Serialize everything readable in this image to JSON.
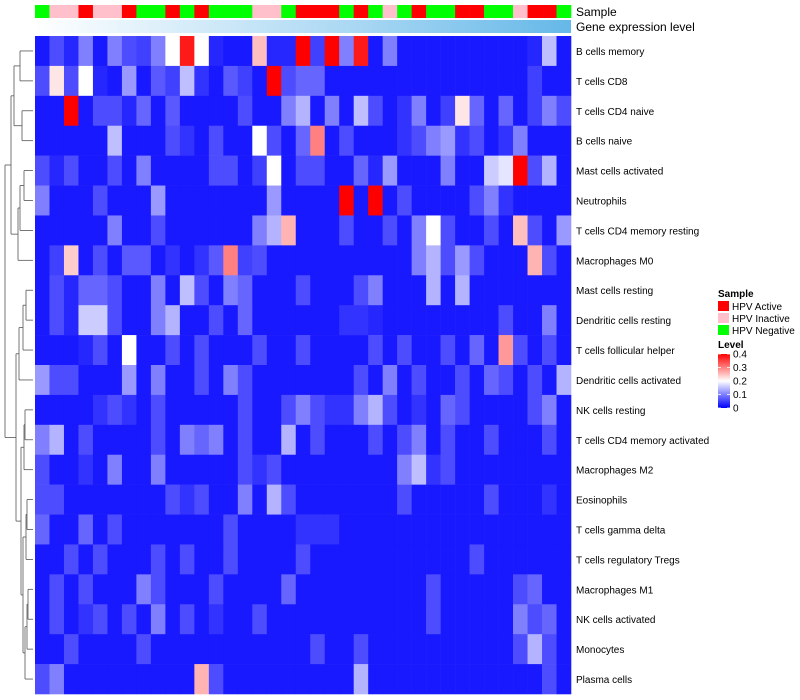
{
  "chart_data": {
    "type": "heatmap",
    "annotation_labels": [
      "Sample",
      "Gene expression level"
    ],
    "rows": [
      "B cells memory",
      "T cells CD8",
      "T cells CD4 naive",
      "B cells naive",
      "Mast cells activated",
      "Neutrophils",
      "T cells CD4 memory resting",
      "Macrophages M0",
      "Mast cells resting",
      "Dendritic cells resting",
      "T cells follicular helper",
      "Dendritic cells activated",
      "NK cells resting",
      "T cells CD4 memory activated",
      "Macrophages M2",
      "Eosinophils",
      "T cells gamma delta",
      "T cells regulatory  Tregs",
      "Macrophages M1",
      "NK cells activated",
      "Monocytes",
      "Plasma cells"
    ],
    "sample_groups": [
      "HPV Negative",
      "HPV Inactive",
      "HPV Inactive",
      "HPV Active",
      "HPV Inactive",
      "HPV Inactive",
      "HPV Active",
      "HPV Negative",
      "HPV Negative",
      "HPV Active",
      "HPV Negative",
      "HPV Active",
      "HPV Negative",
      "HPV Negative",
      "HPV Negative",
      "HPV Inactive",
      "HPV Inactive",
      "HPV Negative",
      "HPV Active",
      "HPV Active",
      "HPV Active",
      "HPV Negative",
      "HPV Active",
      "HPV Negative",
      "HPV Inactive",
      "HPV Negative",
      "HPV Active",
      "HPV Negative",
      "HPV Negative",
      "HPV Active",
      "HPV Active",
      "HPV Negative",
      "HPV Negative",
      "HPV Inactive",
      "HPV Active",
      "HPV Active",
      "HPV Negative"
    ],
    "values": [
      [
        0.02,
        0.06,
        0.03,
        0.1,
        0.02,
        0.1,
        0.06,
        0.05,
        0.1,
        0.2,
        0.38,
        0.2,
        0.03,
        0.02,
        0.02,
        0.25,
        0.03,
        0.03,
        0.4,
        0.05,
        0.4,
        0.1,
        0.38,
        0.02,
        0.1,
        0.02,
        0.02,
        0.02,
        0.02,
        0.02,
        0.02,
        0.02,
        0.02,
        0.02,
        0.03,
        0.15,
        0.02
      ],
      [
        0.06,
        0.22,
        0.06,
        0.2,
        0.03,
        0.02,
        0.12,
        0.02,
        0.07,
        0.05,
        0.15,
        0.04,
        0.02,
        0.07,
        0.05,
        0.02,
        0.4,
        0.06,
        0.08,
        0.08,
        0.02,
        0.02,
        0.02,
        0.02,
        0.02,
        0.02,
        0.02,
        0.02,
        0.02,
        0.02,
        0.02,
        0.02,
        0.02,
        0.02,
        0.05,
        0.02,
        0.02
      ],
      [
        0.02,
        0.02,
        0.4,
        0.02,
        0.06,
        0.06,
        0.03,
        0.08,
        0.02,
        0.07,
        0.02,
        0.02,
        0.02,
        0.02,
        0.06,
        0.02,
        0.02,
        0.1,
        0.14,
        0.02,
        0.1,
        0.02,
        0.15,
        0.06,
        0.02,
        0.04,
        0.1,
        0.02,
        0.05,
        0.22,
        0.08,
        0.02,
        0.08,
        0.02,
        0.05,
        0.1,
        0.06
      ],
      [
        0.02,
        0.02,
        0.02,
        0.02,
        0.02,
        0.15,
        0.02,
        0.02,
        0.02,
        0.06,
        0.04,
        0.02,
        0.06,
        0.02,
        0.02,
        0.2,
        0.06,
        0.02,
        0.08,
        0.3,
        0.02,
        0.06,
        0.02,
        0.02,
        0.02,
        0.04,
        0.06,
        0.1,
        0.12,
        0.04,
        0.06,
        0.02,
        0.04,
        0.1,
        0.02,
        0.02,
        0.02
      ],
      [
        0.06,
        0.03,
        0.06,
        0.02,
        0.02,
        0.06,
        0.02,
        0.1,
        0.02,
        0.02,
        0.02,
        0.02,
        0.06,
        0.06,
        0.02,
        0.05,
        0.2,
        0.02,
        0.06,
        0.06,
        0.02,
        0.02,
        0.08,
        0.03,
        0.12,
        0.02,
        0.02,
        0.02,
        0.1,
        0.02,
        0.02,
        0.16,
        0.18,
        0.4,
        0.06,
        0.14,
        0.02
      ],
      [
        0.1,
        0.02,
        0.02,
        0.02,
        0.06,
        0.02,
        0.02,
        0.02,
        0.12,
        0.02,
        0.02,
        0.02,
        0.02,
        0.02,
        0.02,
        0.02,
        0.12,
        0.02,
        0.02,
        0.02,
        0.02,
        0.4,
        0.02,
        0.4,
        0.02,
        0.06,
        0.02,
        0.02,
        0.02,
        0.02,
        0.06,
        0.1,
        0.04,
        0.02,
        0.02,
        0.02,
        0.02
      ],
      [
        0.02,
        0.02,
        0.02,
        0.02,
        0.02,
        0.1,
        0.02,
        0.02,
        0.06,
        0.02,
        0.02,
        0.02,
        0.02,
        0.02,
        0.02,
        0.1,
        0.14,
        0.26,
        0.02,
        0.02,
        0.02,
        0.06,
        0.02,
        0.02,
        0.06,
        0.02,
        0.1,
        0.2,
        0.06,
        0.02,
        0.02,
        0.06,
        0.02,
        0.25,
        0.06,
        0.02,
        0.12
      ],
      [
        0.02,
        0.05,
        0.24,
        0.02,
        0.06,
        0.02,
        0.07,
        0.07,
        0.02,
        0.04,
        0.02,
        0.04,
        0.07,
        0.3,
        0.05,
        0.06,
        0.02,
        0.02,
        0.02,
        0.02,
        0.02,
        0.02,
        0.02,
        0.02,
        0.02,
        0.02,
        0.1,
        0.14,
        0.06,
        0.12,
        0.06,
        0.02,
        0.02,
        0.02,
        0.26,
        0.06,
        0.02
      ],
      [
        0.02,
        0.06,
        0.03,
        0.08,
        0.08,
        0.06,
        0.02,
        0.02,
        0.1,
        0.02,
        0.15,
        0.06,
        0.02,
        0.1,
        0.08,
        0.02,
        0.02,
        0.02,
        0.06,
        0.02,
        0.02,
        0.02,
        0.06,
        0.1,
        0.02,
        0.02,
        0.02,
        0.14,
        0.02,
        0.14,
        0.02,
        0.02,
        0.02,
        0.02,
        0.02,
        0.02,
        0.02
      ],
      [
        0.02,
        0.06,
        0.03,
        0.16,
        0.16,
        0.06,
        0.02,
        0.02,
        0.1,
        0.14,
        0.02,
        0.02,
        0.06,
        0.02,
        0.08,
        0.02,
        0.02,
        0.02,
        0.02,
        0.02,
        0.02,
        0.04,
        0.04,
        0.03,
        0.02,
        0.02,
        0.02,
        0.02,
        0.02,
        0.02,
        0.02,
        0.02,
        0.06,
        0.02,
        0.02,
        0.1,
        0.02
      ],
      [
        0.02,
        0.02,
        0.02,
        0.03,
        0.06,
        0.02,
        0.2,
        0.02,
        0.02,
        0.06,
        0.02,
        0.06,
        0.02,
        0.02,
        0.02,
        0.06,
        0.02,
        0.02,
        0.06,
        0.02,
        0.02,
        0.02,
        0.02,
        0.06,
        0.02,
        0.06,
        0.02,
        0.02,
        0.06,
        0.02,
        0.08,
        0.02,
        0.28,
        0.06,
        0.02,
        0.06,
        0.02
      ],
      [
        0.12,
        0.06,
        0.06,
        0.02,
        0.02,
        0.02,
        0.12,
        0.02,
        0.1,
        0.02,
        0.02,
        0.06,
        0.02,
        0.1,
        0.06,
        0.02,
        0.02,
        0.02,
        0.02,
        0.02,
        0.02,
        0.02,
        0.06,
        0.02,
        0.1,
        0.02,
        0.06,
        0.02,
        0.02,
        0.06,
        0.02,
        0.08,
        0.06,
        0.02,
        0.06,
        0.02,
        0.14
      ],
      [
        0.02,
        0.02,
        0.02,
        0.02,
        0.04,
        0.06,
        0.04,
        0.02,
        0.06,
        0.02,
        0.02,
        0.02,
        0.02,
        0.02,
        0.06,
        0.02,
        0.02,
        0.06,
        0.1,
        0.06,
        0.04,
        0.04,
        0.1,
        0.14,
        0.06,
        0.02,
        0.04,
        0.02,
        0.08,
        0.06,
        0.02,
        0.02,
        0.02,
        0.02,
        0.06,
        0.1,
        0.02
      ],
      [
        0.1,
        0.14,
        0.02,
        0.06,
        0.02,
        0.02,
        0.02,
        0.02,
        0.06,
        0.02,
        0.1,
        0.08,
        0.1,
        0.02,
        0.06,
        0.02,
        0.02,
        0.14,
        0.02,
        0.06,
        0.02,
        0.02,
        0.02,
        0.06,
        0.02,
        0.06,
        0.1,
        0.02,
        0.06,
        0.02,
        0.02,
        0.06,
        0.02,
        0.02,
        0.02,
        0.06,
        0.02
      ],
      [
        0.06,
        0.02,
        0.02,
        0.04,
        0.02,
        0.1,
        0.02,
        0.02,
        0.1,
        0.02,
        0.02,
        0.02,
        0.02,
        0.02,
        0.06,
        0.04,
        0.06,
        0.02,
        0.02,
        0.02,
        0.02,
        0.02,
        0.02,
        0.02,
        0.02,
        0.1,
        0.15,
        0.04,
        0.06,
        0.02,
        0.02,
        0.02,
        0.02,
        0.02,
        0.02,
        0.02,
        0.02
      ],
      [
        0.06,
        0.06,
        0.02,
        0.02,
        0.02,
        0.02,
        0.02,
        0.02,
        0.02,
        0.06,
        0.04,
        0.06,
        0.02,
        0.02,
        0.1,
        0.02,
        0.14,
        0.06,
        0.02,
        0.02,
        0.02,
        0.02,
        0.02,
        0.02,
        0.02,
        0.06,
        0.02,
        0.02,
        0.02,
        0.02,
        0.02,
        0.06,
        0.02,
        0.02,
        0.02,
        0.04,
        0.02
      ],
      [
        0.08,
        0.02,
        0.02,
        0.08,
        0.02,
        0.06,
        0.02,
        0.02,
        0.02,
        0.02,
        0.02,
        0.02,
        0.02,
        0.06,
        0.02,
        0.02,
        0.02,
        0.02,
        0.04,
        0.04,
        0.04,
        0.02,
        0.02,
        0.02,
        0.02,
        0.02,
        0.02,
        0.02,
        0.02,
        0.02,
        0.02,
        0.02,
        0.02,
        0.02,
        0.02,
        0.02,
        0.02
      ],
      [
        0.02,
        0.02,
        0.06,
        0.02,
        0.06,
        0.02,
        0.02,
        0.02,
        0.06,
        0.02,
        0.06,
        0.02,
        0.02,
        0.06,
        0.02,
        0.02,
        0.02,
        0.02,
        0.06,
        0.02,
        0.02,
        0.02,
        0.02,
        0.02,
        0.02,
        0.02,
        0.02,
        0.02,
        0.02,
        0.02,
        0.06,
        0.02,
        0.02,
        0.02,
        0.02,
        0.02,
        0.02
      ],
      [
        0.02,
        0.06,
        0.02,
        0.06,
        0.02,
        0.02,
        0.02,
        0.1,
        0.06,
        0.02,
        0.02,
        0.02,
        0.06,
        0.02,
        0.02,
        0.02,
        0.02,
        0.08,
        0.02,
        0.02,
        0.02,
        0.02,
        0.02,
        0.02,
        0.02,
        0.02,
        0.02,
        0.06,
        0.02,
        0.02,
        0.02,
        0.02,
        0.02,
        0.06,
        0.08,
        0.02,
        0.02
      ],
      [
        0.02,
        0.06,
        0.02,
        0.04,
        0.06,
        0.02,
        0.06,
        0.02,
        0.1,
        0.02,
        0.06,
        0.02,
        0.04,
        0.02,
        0.02,
        0.06,
        0.02,
        0.02,
        0.02,
        0.02,
        0.02,
        0.02,
        0.02,
        0.02,
        0.02,
        0.02,
        0.02,
        0.06,
        0.02,
        0.02,
        0.02,
        0.02,
        0.02,
        0.1,
        0.06,
        0.08,
        0.02
      ],
      [
        0.02,
        0.02,
        0.06,
        0.02,
        0.02,
        0.02,
        0.02,
        0.06,
        0.02,
        0.02,
        0.02,
        0.02,
        0.02,
        0.02,
        0.02,
        0.02,
        0.02,
        0.02,
        0.02,
        0.06,
        0.02,
        0.02,
        0.06,
        0.02,
        0.02,
        0.02,
        0.02,
        0.02,
        0.02,
        0.02,
        0.02,
        0.02,
        0.02,
        0.06,
        0.14,
        0.06,
        0.02
      ],
      [
        0.06,
        0.1,
        0.02,
        0.02,
        0.02,
        0.02,
        0.02,
        0.02,
        0.02,
        0.02,
        0.02,
        0.26,
        0.06,
        0.02,
        0.02,
        0.02,
        0.02,
        0.02,
        0.02,
        0.02,
        0.02,
        0.02,
        0.14,
        0.02,
        0.02,
        0.02,
        0.02,
        0.02,
        0.02,
        0.02,
        0.02,
        0.02,
        0.02,
        0.02,
        0.02,
        0.06,
        0.02
      ]
    ],
    "legend": {
      "sample_title": "Sample",
      "sample_entries": [
        {
          "label": "HPV Active",
          "color": "#ff0000"
        },
        {
          "label": "HPV Inactive",
          "color": "#ffc0cb"
        },
        {
          "label": "HPV Negative",
          "color": "#00ff00"
        }
      ],
      "level_title": "Level",
      "level_ticks": [
        "0.4",
        "0.3",
        "0.2",
        "0.1",
        "0"
      ],
      "level_range": [
        0,
        0.4
      ],
      "placement": "right"
    },
    "colors": {
      "low": "#0000ff",
      "mid": "#ffffff",
      "high": "#ff0000",
      "expression_bar": "#65b8e8"
    },
    "dendrogram": "left, rows"
  }
}
